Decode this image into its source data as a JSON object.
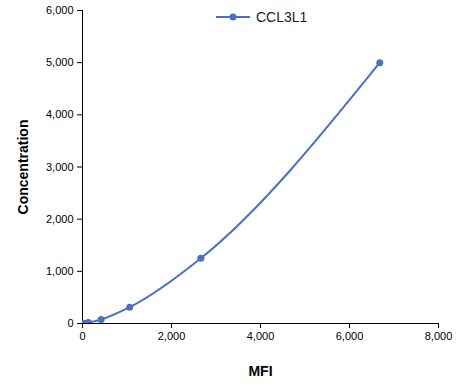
{
  "chart_data": {
    "type": "line",
    "x_label": "MFI",
    "y_label": "Concentration",
    "x": [
      20,
      130,
      420,
      1060,
      2660,
      6680
    ],
    "series": [
      {
        "name": "CCL3L1",
        "color": "#4a72c0",
        "marker": "circle",
        "values": [
          4.9,
          19.5,
          78,
          312.5,
          1250,
          5000
        ]
      }
    ],
    "xlim": [
      0,
      8000
    ],
    "xticks": [
      0,
      2000,
      4000,
      6000,
      8000
    ],
    "ylim": [
      0,
      6000
    ],
    "yticks": [
      0,
      1000,
      2000,
      3000,
      4000,
      5000,
      6000
    ],
    "legend": "top",
    "grid": false
  }
}
